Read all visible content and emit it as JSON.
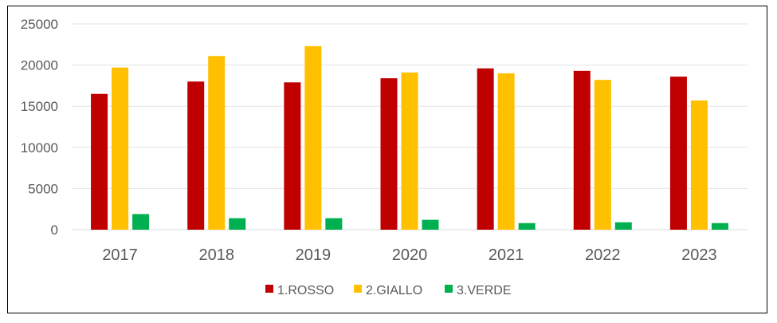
{
  "chart_data": {
    "type": "bar",
    "categories": [
      "2017",
      "2018",
      "2019",
      "2020",
      "2021",
      "2022",
      "2023"
    ],
    "series": [
      {
        "name": "1.ROSSO",
        "color": "#C00000",
        "values": [
          16500,
          18000,
          17900,
          18400,
          19600,
          19300,
          18600
        ]
      },
      {
        "name": "2.GIALLO",
        "color": "#FFC000",
        "values": [
          19700,
          21100,
          22300,
          19100,
          19000,
          18200,
          15700
        ]
      },
      {
        "name": "3.VERDE",
        "color": "#00B050",
        "values": [
          1900,
          1400,
          1400,
          1200,
          800,
          900,
          800
        ]
      }
    ],
    "ylim": [
      0,
      25000
    ],
    "yticks": [
      "0",
      "5000",
      "10000",
      "15000",
      "20000",
      "25000"
    ],
    "grid": true,
    "legend": "bottom",
    "title": "",
    "xlabel": "",
    "ylabel": ""
  }
}
